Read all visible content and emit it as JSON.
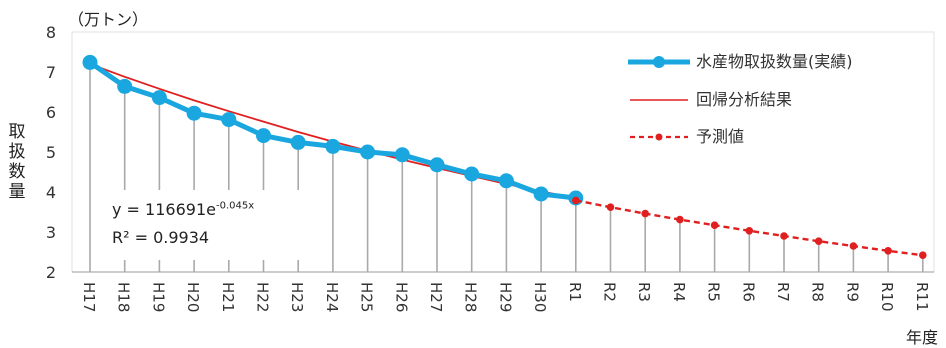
{
  "chart_data": {
    "type": "line",
    "ylabel": "取扱数量",
    "yunit": "（万トン）",
    "xunit": "年度",
    "ylim": [
      2,
      8
    ],
    "yticks": [
      2,
      3,
      4,
      5,
      6,
      7,
      8
    ],
    "categories": [
      "H17",
      "H18",
      "H19",
      "H20",
      "H21",
      "H22",
      "H23",
      "H24",
      "H25",
      "H26",
      "H27",
      "H28",
      "H29",
      "H30",
      "R1",
      "R2",
      "R3",
      "R4",
      "R5",
      "R6",
      "R7",
      "R8",
      "R9",
      "R10",
      "R11"
    ],
    "series": [
      {
        "name": "水産物取扱数量(実績)",
        "color": "#1aa7e0",
        "values": [
          7.24,
          6.64,
          6.36,
          5.97,
          5.81,
          5.41,
          5.24,
          5.14,
          5.0,
          4.93,
          4.68,
          4.45,
          4.28,
          3.95,
          3.85,
          null,
          null,
          null,
          null,
          null,
          null,
          null,
          null,
          null,
          null
        ]
      },
      {
        "name": "回帰分析結果",
        "color": "#e02020",
        "values": [
          7.2,
          6.88,
          6.58,
          6.29,
          6.02,
          5.76,
          5.5,
          5.26,
          5.03,
          4.81,
          4.6,
          4.4,
          4.2,
          4.02,
          3.84,
          null,
          null,
          null,
          null,
          null,
          null,
          null,
          null,
          null,
          null
        ]
      },
      {
        "name": "予測値",
        "color": "#e02020",
        "values": [
          null,
          null,
          null,
          null,
          null,
          null,
          null,
          null,
          null,
          null,
          null,
          null,
          null,
          null,
          3.79,
          3.62,
          3.46,
          3.31,
          3.17,
          3.03,
          2.9,
          2.77,
          2.65,
          2.53,
          2.42
        ]
      }
    ],
    "equation_prefix": "y = 116691e",
    "equation_exp": "-0.045x",
    "r_squared": "R² = 0.9934",
    "legend_position": "top-right",
    "grid": "vertical drop lines"
  }
}
